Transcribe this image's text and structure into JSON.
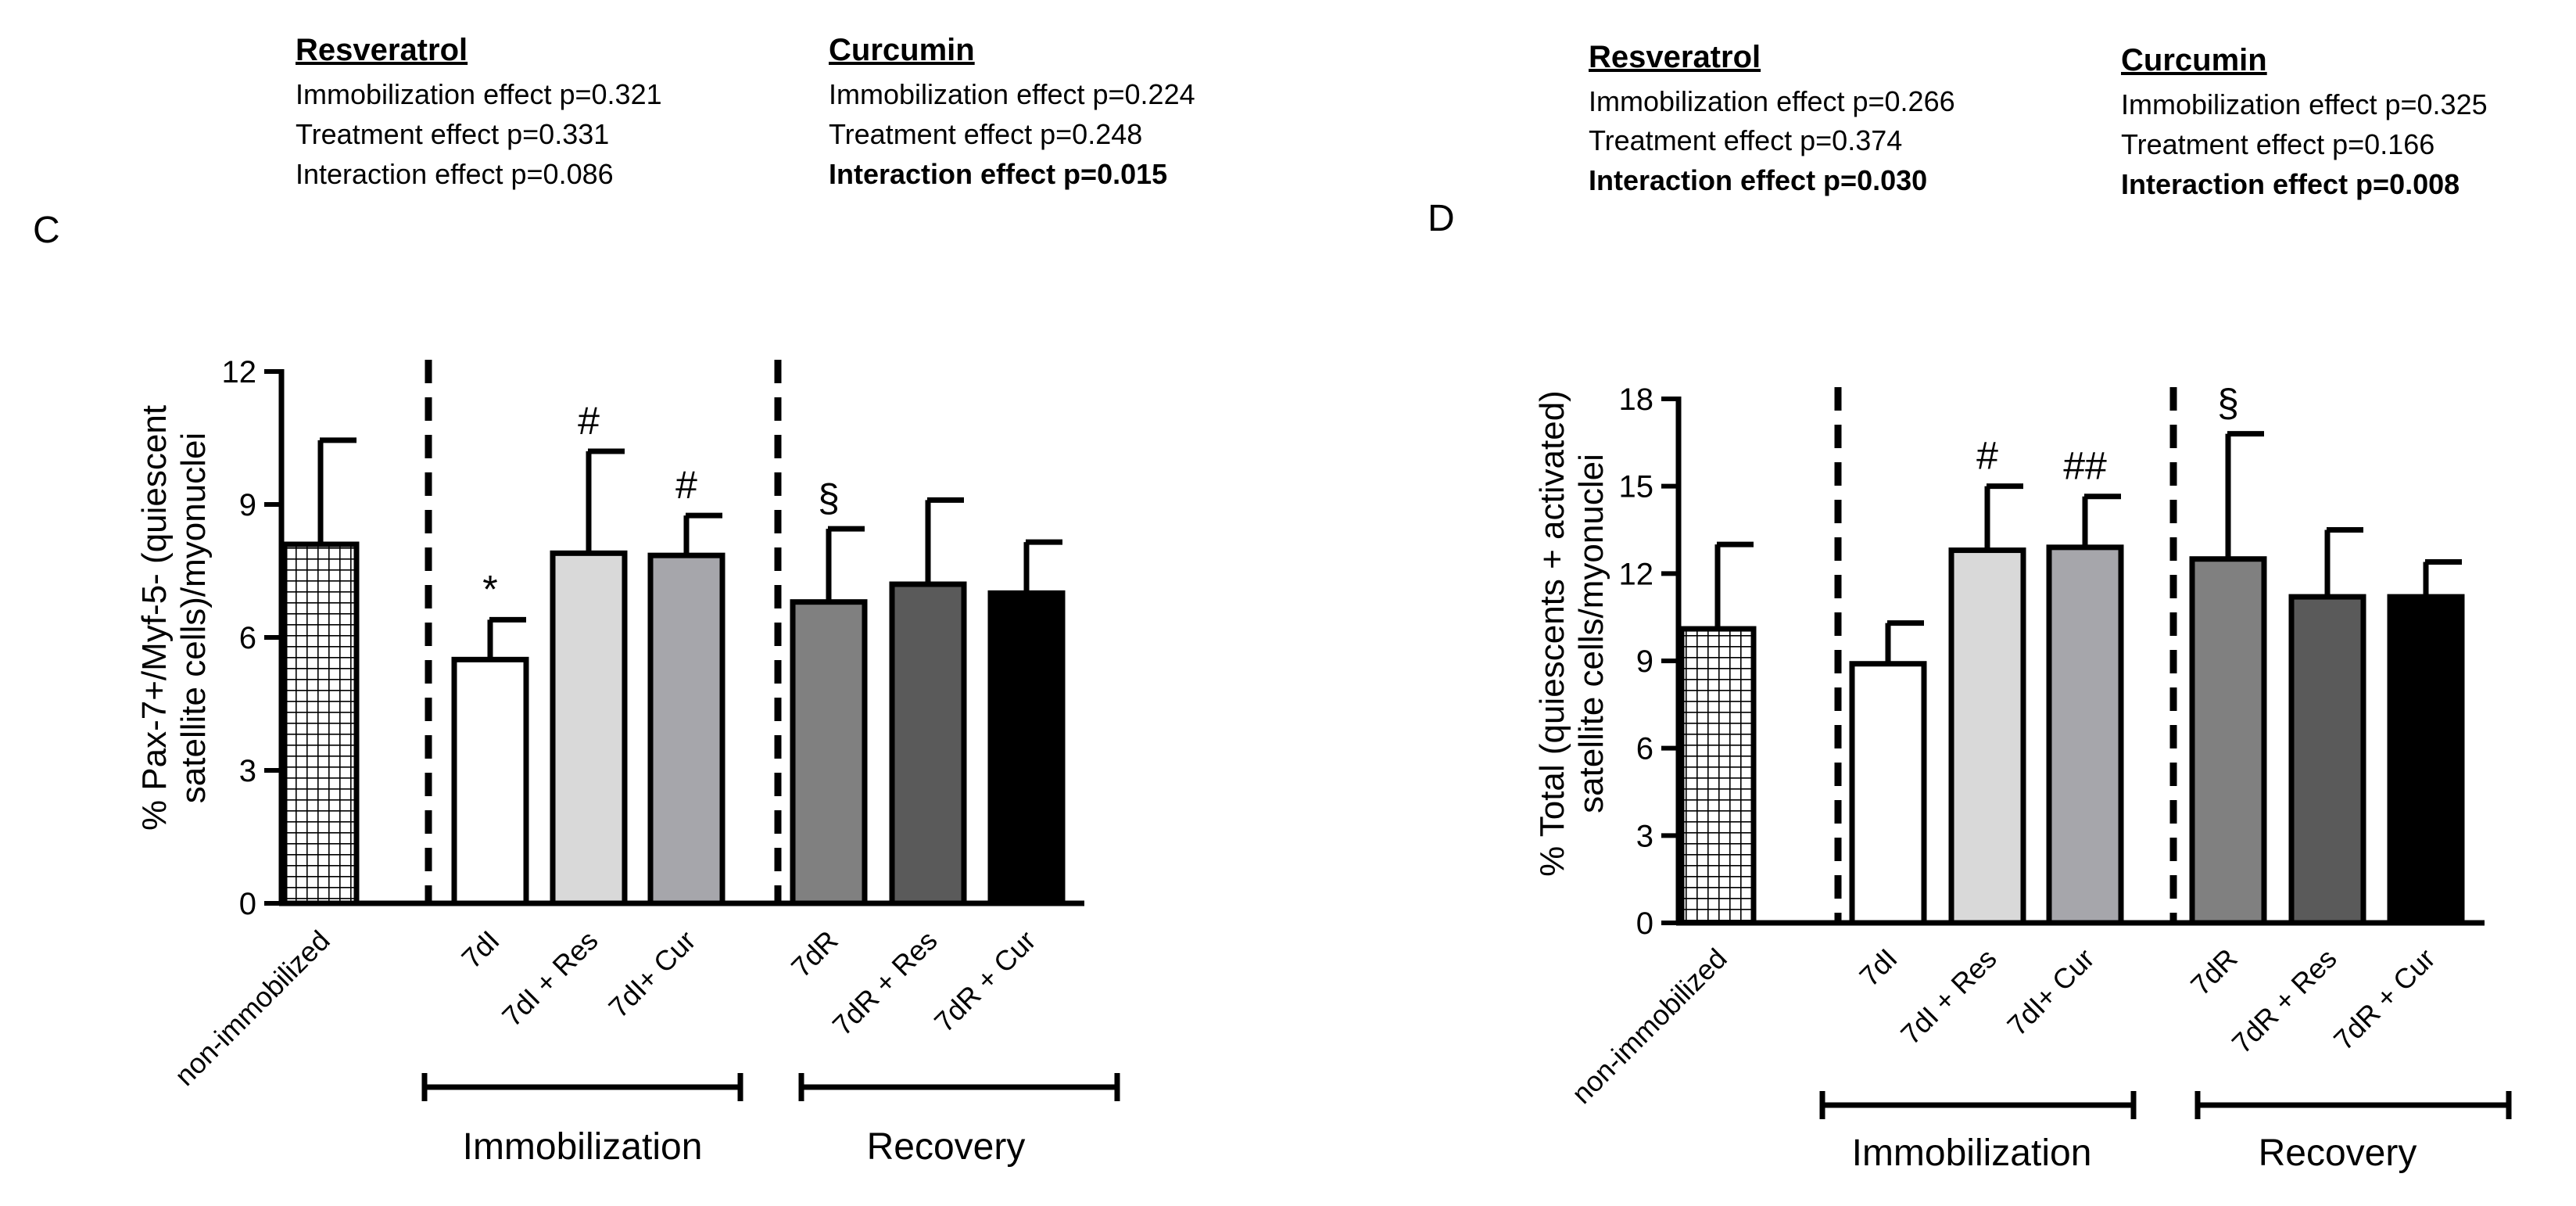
{
  "panels": [
    {
      "letter": "C",
      "resveratrol": {
        "heading": "Resveratrol",
        "lines": [
          {
            "text": "Immobilization effect p=0.321",
            "bold": false
          },
          {
            "text": "Treatment effect p=0.331",
            "bold": false
          },
          {
            "text": "Interaction effect p=0.086",
            "bold": false
          }
        ]
      },
      "curcumin": {
        "heading": "Curcumin",
        "lines": [
          {
            "text": "Immobilization effect p=0.224",
            "bold": false
          },
          {
            "text": "Treatment effect p=0.248",
            "bold": false
          },
          {
            "text": "Interaction effect p=0.015",
            "bold": true
          }
        ]
      },
      "groups": [
        {
          "label": "Immobilization"
        },
        {
          "label": "Recovery"
        }
      ]
    },
    {
      "letter": "D",
      "resveratrol": {
        "heading": "Resveratrol",
        "lines": [
          {
            "text": "Immobilization effect p=0.266",
            "bold": false
          },
          {
            "text": "Treatment effect p=0.374",
            "bold": false
          },
          {
            "text": "Interaction effect p=0.030",
            "bold": true
          }
        ]
      },
      "curcumin": {
        "heading": "Curcumin",
        "lines": [
          {
            "text": "Immobilization effect p=0.325",
            "bold": false
          },
          {
            "text": "Treatment effect p=0.166",
            "bold": false
          },
          {
            "text": "Interaction effect p=0.008",
            "bold": true
          }
        ]
      },
      "groups": [
        {
          "label": "Immobilization"
        },
        {
          "label": "Recovery"
        }
      ]
    }
  ],
  "chart_data": [
    {
      "type": "bar",
      "panel": "C",
      "ylabel_line1": "% Pax-7+/Myf-5- (quiescent",
      "ylabel_line2": "satellite cells)/myonuclei",
      "ylim": [
        0,
        12
      ],
      "yticks": [
        0,
        3,
        6,
        9,
        12
      ],
      "categories": [
        "non-immobilized",
        "7dI",
        "7dI + Res",
        "7dI+ Cur",
        "7dR",
        "7dR + Res",
        "7dR + Cur"
      ],
      "values": [
        8.1,
        5.5,
        7.9,
        7.85,
        6.8,
        7.2,
        7.0
      ],
      "errors": [
        2.35,
        0.9,
        2.3,
        0.9,
        1.65,
        1.9,
        1.15
      ],
      "annotations": [
        "",
        "*",
        "#",
        "#",
        "§",
        "",
        ""
      ],
      "fills": [
        "hatch",
        "#ffffff",
        "#d9d9d9",
        "#a6a6ab",
        "#808080",
        "#5a5a5a",
        "#000000"
      ]
    },
    {
      "type": "bar",
      "panel": "D",
      "ylabel_line1": "% Total (quiescents + activated)",
      "ylabel_line2": "satellite cells/myonuclei",
      "ylim": [
        0,
        18
      ],
      "yticks": [
        0,
        3,
        6,
        9,
        12,
        15,
        18
      ],
      "categories": [
        "non-immobilized",
        "7dI",
        "7dI + Res",
        "7dI+ Cur",
        "7dR",
        "7dR + Res",
        "7dR + Cur"
      ],
      "values": [
        10.1,
        8.9,
        12.8,
        12.9,
        12.5,
        11.2,
        11.2
      ],
      "errors": [
        2.9,
        1.4,
        2.2,
        1.75,
        4.3,
        2.3,
        1.2
      ],
      "annotations": [
        "",
        "",
        "#",
        "##",
        "§",
        "",
        ""
      ],
      "fills": [
        "hatch",
        "#ffffff",
        "#d9d9d9",
        "#a6a6ab",
        "#808080",
        "#5a5a5a",
        "#000000"
      ]
    }
  ]
}
